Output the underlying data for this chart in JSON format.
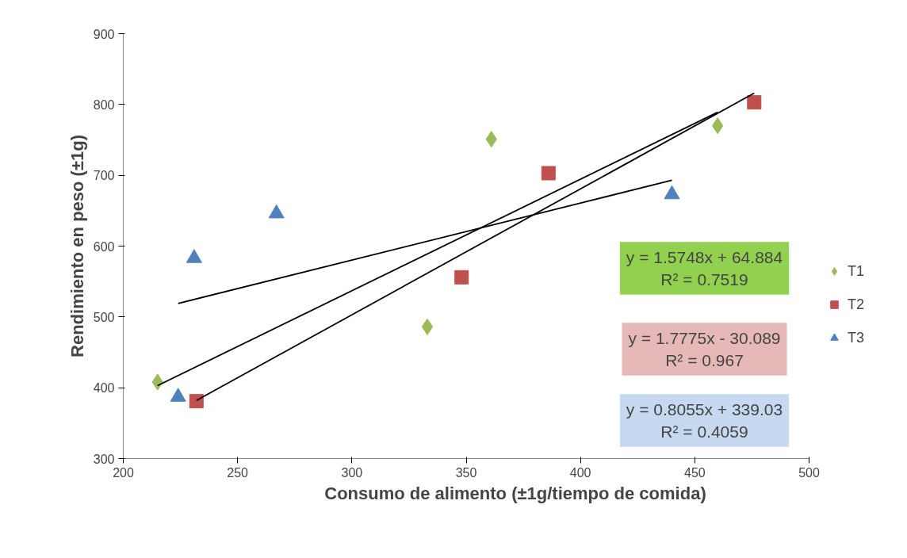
{
  "chart_data": {
    "type": "scatter",
    "xlabel": "Consumo de alimento (±1g/tiempo de comida)",
    "ylabel": "Rendimiento en peso (±1g)",
    "xlim": [
      200,
      500
    ],
    "xticks": [
      200,
      250,
      300,
      350,
      400,
      450,
      500
    ],
    "ylim": [
      300,
      900
    ],
    "yticks": [
      300,
      400,
      500,
      600,
      700,
      800,
      900
    ],
    "grid": false,
    "legend": "right",
    "series": [
      {
        "name": "T1",
        "color": "#9bbb59",
        "marker": "diamond",
        "x": [
          215,
          333,
          361,
          460
        ],
        "values": [
          408,
          486,
          751,
          770
        ]
      },
      {
        "name": "T2",
        "color": "#c0504d",
        "marker": "square",
        "x": [
          232,
          348,
          386,
          476
        ],
        "values": [
          381,
          556,
          703,
          803
        ]
      },
      {
        "name": "T3",
        "color": "#4f81bd",
        "marker": "triangle",
        "x": [
          224,
          231,
          267,
          440
        ],
        "values": [
          387,
          583,
          646,
          673
        ]
      },
      {
        "type": "line",
        "color": "#000000",
        "x": [
          215,
          460
        ],
        "values": [
          403,
          789
        ]
      },
      {
        "type": "line",
        "color": "#000000",
        "x": [
          232,
          476
        ],
        "values": [
          382,
          816
        ]
      },
      {
        "type": "line",
        "color": "#000000",
        "x": [
          224,
          440
        ],
        "values": [
          519,
          693
        ]
      }
    ],
    "annotations": [
      "y = 1.5748x + 64.884\nR² = 0.7519",
      "y = 1.7775x - 30.089\nR² = 0.967",
      "y = 0.8055x + 339.03\nR² = 0.4059"
    ]
  }
}
